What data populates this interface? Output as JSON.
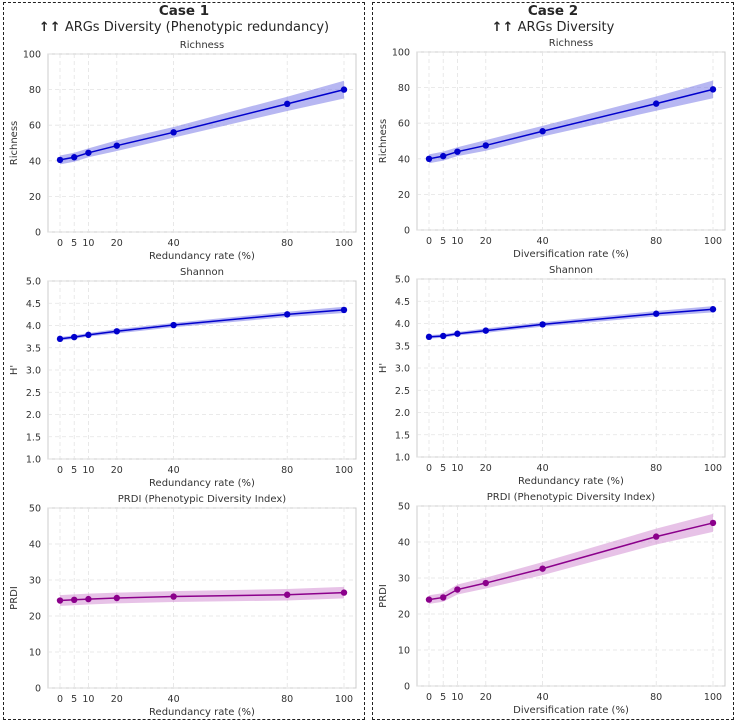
{
  "cases": [
    {
      "title": "Case 1",
      "subtitle": "ARGs Diversity (Phenotypic redundancy)",
      "arrows": "↑↑"
    },
    {
      "title": "Case 2",
      "subtitle": "ARGs Diversity",
      "arrows": "↑↑"
    }
  ],
  "colors": {
    "blue": "#0000cc",
    "purple": "#8b008b",
    "blue_band": "#6f6fe6",
    "purple_band": "#cf86cf"
  },
  "chart_data": [
    {
      "type": "line",
      "title": "Richness",
      "xlabel": "Redundancy rate (%)",
      "ylabel": "Richness",
      "x": [
        0,
        5,
        10,
        20,
        40,
        80,
        100
      ],
      "values": [
        40.5,
        42,
        44.5,
        48.5,
        56,
        72,
        80
      ],
      "band": [
        2.5,
        2.5,
        2.5,
        3,
        3,
        4,
        5
      ],
      "ylim": [
        0,
        100
      ],
      "yticks": [
        0,
        20,
        40,
        60,
        80,
        100
      ],
      "color": "blue"
    },
    {
      "type": "line",
      "title": "Richness",
      "xlabel": "Diversification rate (%)",
      "ylabel": "Richness",
      "x": [
        0,
        5,
        10,
        20,
        40,
        80,
        100
      ],
      "values": [
        40,
        41.5,
        44,
        47.5,
        55.5,
        71,
        79
      ],
      "band": [
        2.5,
        2.5,
        2.5,
        3,
        3,
        4,
        5
      ],
      "ylim": [
        0,
        100
      ],
      "yticks": [
        0,
        20,
        40,
        60,
        80,
        100
      ],
      "color": "blue"
    },
    {
      "type": "line",
      "title": "Shannon",
      "xlabel": "Redundancy rate (%)",
      "ylabel": "H'",
      "x": [
        0,
        5,
        10,
        20,
        40,
        80,
        100
      ],
      "values": [
        3.7,
        3.74,
        3.79,
        3.87,
        4.01,
        4.25,
        4.35
      ],
      "band": [
        0.04,
        0.04,
        0.04,
        0.05,
        0.05,
        0.06,
        0.07
      ],
      "ylim": [
        1.0,
        5.0
      ],
      "yticks": [
        1.0,
        1.5,
        2.0,
        2.5,
        3.0,
        3.5,
        4.0,
        4.5,
        5.0
      ],
      "color": "blue"
    },
    {
      "type": "line",
      "title": "Shannon",
      "xlabel": "Redundancy rate (%)",
      "ylabel": "H'",
      "x": [
        0,
        5,
        10,
        20,
        40,
        80,
        100
      ],
      "values": [
        3.7,
        3.72,
        3.77,
        3.84,
        3.98,
        4.22,
        4.32
      ],
      "band": [
        0.04,
        0.04,
        0.04,
        0.05,
        0.05,
        0.06,
        0.07
      ],
      "ylim": [
        1.0,
        5.0
      ],
      "yticks": [
        1.0,
        1.5,
        2.0,
        2.5,
        3.0,
        3.5,
        4.0,
        4.5,
        5.0
      ],
      "color": "blue"
    },
    {
      "type": "line",
      "title": "PRDI (Phenotypic Diversity Index)",
      "xlabel": "Redundancy rate (%)",
      "ylabel": "PRDI",
      "x": [
        0,
        5,
        10,
        20,
        40,
        80,
        100
      ],
      "values": [
        24.3,
        24.5,
        24.7,
        25,
        25.4,
        25.9,
        26.5
      ],
      "band": [
        1.5,
        1.5,
        1.5,
        1.5,
        1.5,
        1.6,
        1.6
      ],
      "ylim": [
        0,
        50
      ],
      "yticks": [
        0,
        10,
        20,
        30,
        40,
        50
      ],
      "color": "purple"
    },
    {
      "type": "line",
      "title": "PRDI (Phenotypic Diversity Index)",
      "xlabel": "Diversification rate (%)",
      "ylabel": "PRDI",
      "x": [
        0,
        5,
        10,
        20,
        40,
        80,
        100
      ],
      "values": [
        24,
        24.6,
        26.8,
        28.6,
        32.6,
        41.5,
        45.3
      ],
      "band": [
        1.2,
        1.2,
        1.4,
        1.5,
        1.8,
        2.2,
        2.5
      ],
      "ylim": [
        0,
        50
      ],
      "yticks": [
        0,
        10,
        20,
        30,
        40,
        50
      ],
      "color": "purple"
    }
  ]
}
